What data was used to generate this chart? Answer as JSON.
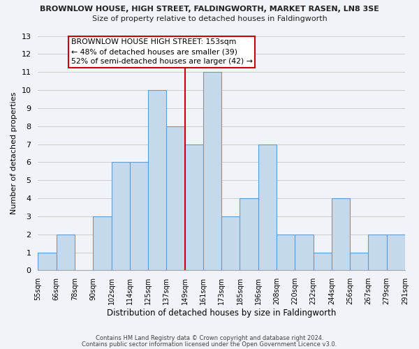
{
  "title": "BROWNLOW HOUSE, HIGH STREET, FALDINGWORTH, MARKET RASEN, LN8 3SE",
  "subtitle": "Size of property relative to detached houses in Faldingworth",
  "xlabel": "Distribution of detached houses by size in Faldingworth",
  "ylabel": "Number of detached properties",
  "bin_labels": [
    "55sqm",
    "66sqm",
    "78sqm",
    "90sqm",
    "102sqm",
    "114sqm",
    "125sqm",
    "137sqm",
    "149sqm",
    "161sqm",
    "173sqm",
    "185sqm",
    "196sqm",
    "208sqm",
    "220sqm",
    "232sqm",
    "244sqm",
    "256sqm",
    "267sqm",
    "279sqm",
    "291sqm"
  ],
  "bin_values": [
    1,
    2,
    0,
    3,
    6,
    6,
    10,
    8,
    7,
    11,
    3,
    4,
    7,
    2,
    2,
    1,
    4,
    1,
    2,
    2
  ],
  "bar_color": "#c5d9ed",
  "bar_edge_color": "#6699cc",
  "grid_color": "#cccccc",
  "marker_line_index": 8,
  "marker_line_color": "#cc0000",
  "annotation_title": "BROWNLOW HOUSE HIGH STREET: 153sqm",
  "annotation_line1": "← 48% of detached houses are smaller (39)",
  "annotation_line2": "52% of semi-detached houses are larger (42) →",
  "annotation_box_color": "#ffffff",
  "annotation_box_edge_color": "#cc0000",
  "ylim": [
    0,
    13
  ],
  "yticks": [
    0,
    1,
    2,
    3,
    4,
    5,
    6,
    7,
    8,
    9,
    10,
    11,
    12,
    13
  ],
  "footer1": "Contains HM Land Registry data © Crown copyright and database right 2024.",
  "footer2": "Contains public sector information licensed under the Open Government Licence v3.0.",
  "bg_color": "#f0f4f8"
}
